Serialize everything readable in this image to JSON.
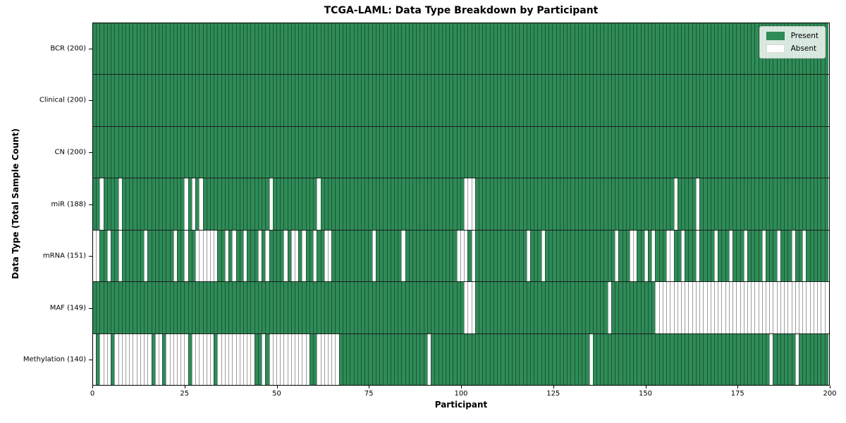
{
  "colors": {
    "present": "#2e8b57",
    "absent": "#ffffff",
    "cell_border": "rgba(0,0,0,0.38)",
    "row_separator": "#1c1c1c",
    "frame": "#000000"
  },
  "chart_data": {
    "type": "heatmap",
    "title": "TCGA-LAML: Data Type Breakdown by Participant",
    "xlabel": "Participant",
    "ylabel": "Data Type (Total Sample Count)",
    "grid": "cell-borders-on",
    "legend_position": "upper-right",
    "n_participants": 200,
    "x_axis": {
      "range": [
        0,
        200
      ],
      "ticks": [
        0,
        25,
        50,
        75,
        100,
        125,
        150,
        175,
        200
      ]
    },
    "value_encoding": {
      "present": 1,
      "absent": 0
    },
    "rows": [
      {
        "label": "BCR (200)",
        "data_type": "BCR",
        "total_samples": 200,
        "absent": []
      },
      {
        "label": "Clinical (200)",
        "data_type": "Clinical",
        "total_samples": 200,
        "absent": []
      },
      {
        "label": "CN (200)",
        "data_type": "CN",
        "total_samples": 200,
        "absent": []
      },
      {
        "label": "miR (188)",
        "data_type": "miR",
        "total_samples": 188,
        "absent": [
          2,
          7,
          25,
          27,
          29,
          48,
          61,
          101,
          102,
          103,
          158,
          164
        ]
      },
      {
        "label": "mRNA (151)",
        "data_type": "mRNA",
        "total_samples": 151,
        "absent": [
          0,
          1,
          4,
          7,
          14,
          22,
          25,
          28,
          29,
          30,
          31,
          32,
          33,
          36,
          38,
          41,
          45,
          47,
          52,
          54,
          55,
          57,
          60,
          63,
          64,
          76,
          84,
          99,
          100,
          101,
          103,
          118,
          122,
          142,
          146,
          147,
          150,
          152,
          156,
          157,
          160,
          164,
          169,
          173,
          177,
          182,
          186,
          190,
          193
        ]
      },
      {
        "label": "MAF (149)",
        "data_type": "MAF",
        "total_samples": 149,
        "absent": [
          101,
          102,
          103,
          140,
          153,
          154,
          155,
          156,
          157,
          158,
          159,
          160,
          161,
          162,
          163,
          164,
          165,
          166,
          167,
          168,
          169,
          170,
          171,
          172,
          173,
          174,
          175,
          176,
          177,
          178,
          179,
          180,
          181,
          182,
          183,
          184,
          185,
          186,
          187,
          188,
          189,
          190,
          191,
          192,
          193,
          194,
          195,
          196,
          197,
          198,
          199
        ]
      },
      {
        "label": "Methylation (140)",
        "data_type": "Methylation",
        "total_samples": 140,
        "absent": [
          0,
          2,
          3,
          4,
          6,
          7,
          8,
          9,
          10,
          11,
          12,
          13,
          14,
          15,
          17,
          18,
          20,
          21,
          22,
          23,
          24,
          25,
          27,
          28,
          29,
          30,
          31,
          32,
          34,
          35,
          36,
          37,
          38,
          39,
          40,
          41,
          42,
          43,
          46,
          48,
          49,
          50,
          51,
          52,
          53,
          54,
          55,
          56,
          57,
          58,
          61,
          62,
          63,
          64,
          65,
          66,
          91,
          135,
          184,
          191
        ]
      }
    ],
    "legend": [
      {
        "label": "Present",
        "color": "#2e8b57"
      },
      {
        "label": "Absent",
        "color": "#ffffff"
      }
    ]
  }
}
